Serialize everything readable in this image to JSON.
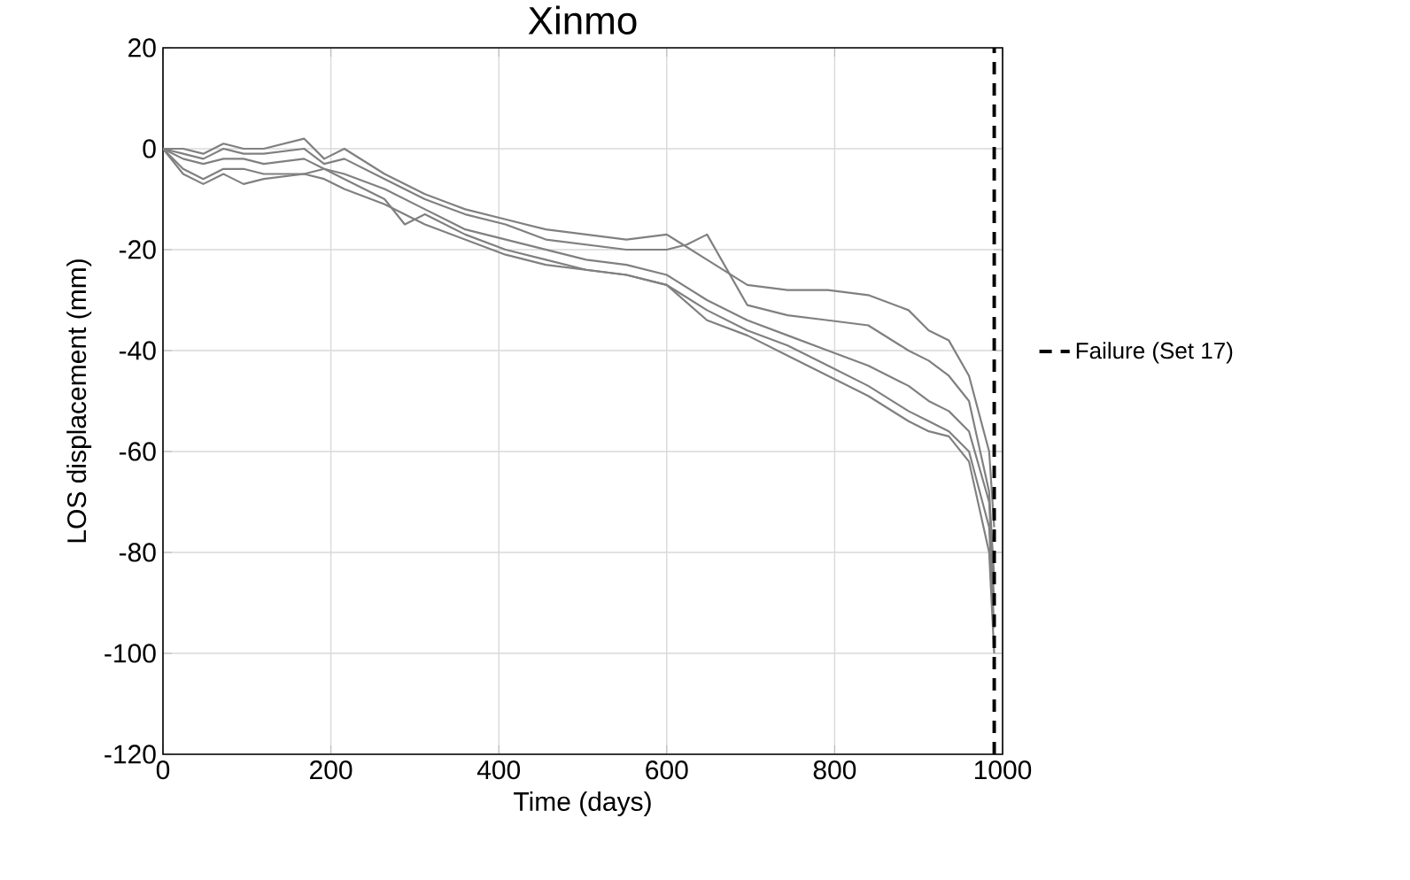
{
  "chart_data": {
    "type": "line",
    "title": "Xinmo",
    "xlabel": "Time (days)",
    "ylabel": "LOS displacement (mm)",
    "xlim": [
      0,
      1000
    ],
    "ylim": [
      -120,
      20
    ],
    "xticks": [
      0,
      200,
      400,
      600,
      800,
      1000
    ],
    "yticks": [
      -120,
      -100,
      -80,
      -60,
      -40,
      -20,
      0,
      20
    ],
    "grid": true,
    "legend": "right",
    "marker": "none",
    "line_style": "solid",
    "ref_lines": [
      {
        "axis": "x",
        "value": 990,
        "label": "Failure (Set 17)",
        "color": "#000000",
        "line_style": "dashed"
      }
    ],
    "series": [
      {
        "color": "#808080",
        "x": [
          0,
          24,
          48,
          72,
          96,
          120,
          168,
          192,
          216,
          264,
          312,
          360,
          408,
          456,
          504,
          552,
          600,
          648,
          696,
          744,
          792,
          840,
          888,
          912,
          936,
          960,
          984,
          990
        ],
        "values": [
          0,
          0,
          -1,
          1,
          0,
          0,
          2,
          -2,
          0,
          -5,
          -9,
          -12,
          -14,
          -16,
          -17,
          -18,
          -17,
          -22,
          -27,
          -28,
          -28,
          -29,
          -32,
          -36,
          -38,
          -45,
          -60,
          -75
        ]
      },
      {
        "color": "#808080",
        "x": [
          0,
          24,
          48,
          72,
          96,
          120,
          168,
          192,
          216,
          264,
          312,
          360,
          408,
          456,
          504,
          552,
          600,
          624,
          648,
          696,
          744,
          792,
          840,
          888,
          912,
          936,
          960,
          984,
          990
        ],
        "values": [
          0,
          -1,
          -2,
          0,
          -1,
          -1,
          0,
          -3,
          -2,
          -6,
          -10,
          -13,
          -15,
          -18,
          -19,
          -20,
          -20,
          -19,
          -17,
          -31,
          -33,
          -34,
          -35,
          -40,
          -42,
          -45,
          -50,
          -68,
          -85
        ]
      },
      {
        "color": "#808080",
        "x": [
          0,
          24,
          48,
          72,
          96,
          120,
          168,
          192,
          216,
          264,
          312,
          360,
          408,
          456,
          504,
          552,
          600,
          648,
          696,
          744,
          792,
          840,
          888,
          912,
          936,
          960,
          984,
          990
        ],
        "values": [
          0,
          -2,
          -3,
          -2,
          -2,
          -3,
          -2,
          -4,
          -5,
          -8,
          -12,
          -16,
          -18,
          -20,
          -22,
          -23,
          -25,
          -30,
          -34,
          -37,
          -40,
          -43,
          -47,
          -50,
          -52,
          -56,
          -70,
          -90
        ]
      },
      {
        "color": "#808080",
        "x": [
          0,
          24,
          48,
          72,
          96,
          120,
          168,
          192,
          216,
          264,
          288,
          312,
          360,
          408,
          456,
          504,
          552,
          600,
          648,
          696,
          744,
          792,
          840,
          888,
          912,
          936,
          960,
          984,
          990
        ],
        "values": [
          0,
          -4,
          -6,
          -4,
          -4,
          -5,
          -5,
          -4,
          -6,
          -10,
          -15,
          -13,
          -17,
          -20,
          -22,
          -24,
          -25,
          -27,
          -32,
          -36,
          -39,
          -43,
          -47,
          -52,
          -54,
          -56,
          -60,
          -75,
          -95
        ]
      },
      {
        "color": "#808080",
        "x": [
          0,
          24,
          48,
          72,
          96,
          120,
          168,
          192,
          216,
          264,
          312,
          360,
          408,
          456,
          504,
          552,
          600,
          648,
          696,
          744,
          792,
          840,
          888,
          912,
          936,
          960,
          984,
          990
        ],
        "values": [
          0,
          -5,
          -7,
          -5,
          -7,
          -6,
          -5,
          -6,
          -8,
          -11,
          -15,
          -18,
          -21,
          -23,
          -24,
          -25,
          -27,
          -34,
          -37,
          -41,
          -45,
          -49,
          -54,
          -56,
          -57,
          -62,
          -80,
          -100
        ]
      }
    ]
  }
}
